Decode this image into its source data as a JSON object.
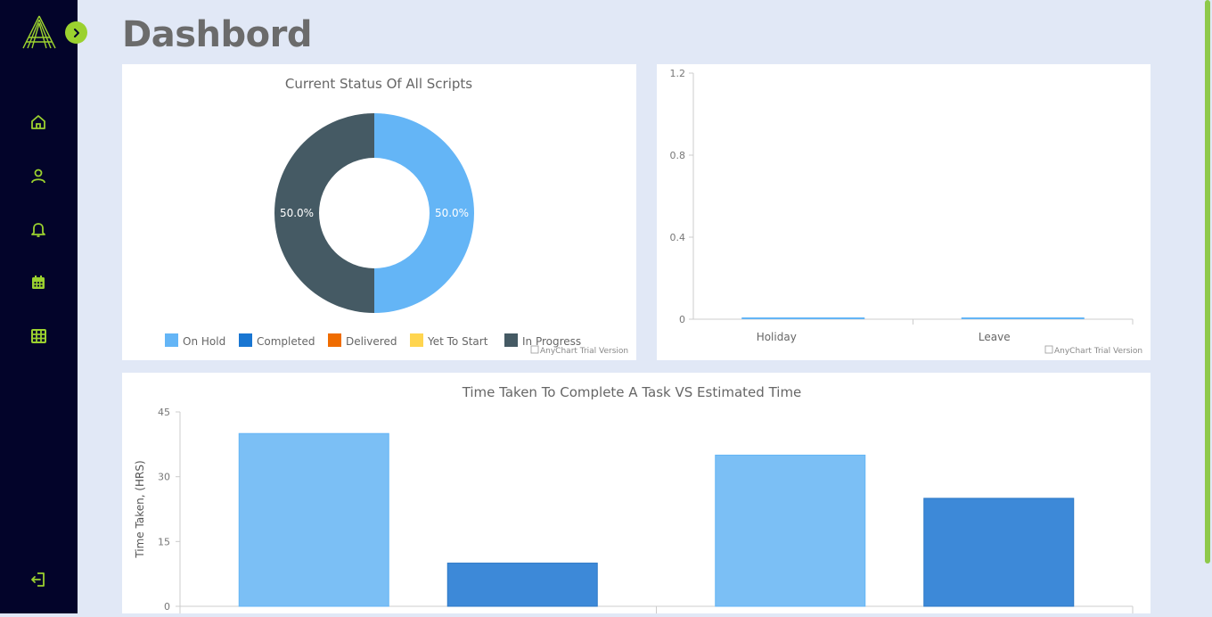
{
  "page": {
    "title": "Dashbord"
  },
  "sidebar": {
    "items": [
      {
        "name": "home-icon"
      },
      {
        "name": "user-icon"
      },
      {
        "name": "bell-icon"
      },
      {
        "name": "calendar-icon"
      },
      {
        "name": "table-icon"
      },
      {
        "name": "logout-icon"
      }
    ],
    "accent_color": "#9bd12f",
    "background_color": "#03042a"
  },
  "credit": "AnyChart Trial Version",
  "chart_data": [
    {
      "type": "pie",
      "title": "Current Status Of All Scripts",
      "categories": [
        "On Hold",
        "Completed",
        "Delivered",
        "Yet To Start",
        "In Progress"
      ],
      "values": [
        1,
        0,
        0,
        0,
        1
      ],
      "labels": [
        "50.0%",
        "50.0%"
      ],
      "colors": [
        "#64b5f6",
        "#1976d2",
        "#ef6c00",
        "#ffd54f",
        "#455a64"
      ],
      "legend": "bottom"
    },
    {
      "type": "bar",
      "categories": [
        "Holiday",
        "Leave"
      ],
      "values": [
        0,
        0
      ],
      "ylim": [
        0,
        1.2
      ],
      "yticks": [
        "0",
        "0.4",
        "0.8",
        "1.2"
      ],
      "color": "#64b5f6"
    },
    {
      "type": "bar",
      "title": "Time Taken To Complete A Task VS Estimated Time",
      "ylabel": "Time Taken, (HRS)",
      "ylim": [
        0,
        45
      ],
      "yticks": [
        "0",
        "15",
        "30",
        "45"
      ],
      "series": [
        {
          "values": [
            40,
            35
          ],
          "color": "#7bbff5"
        },
        {
          "values": [
            10,
            25
          ],
          "color": "#3d89d8"
        }
      ]
    }
  ]
}
